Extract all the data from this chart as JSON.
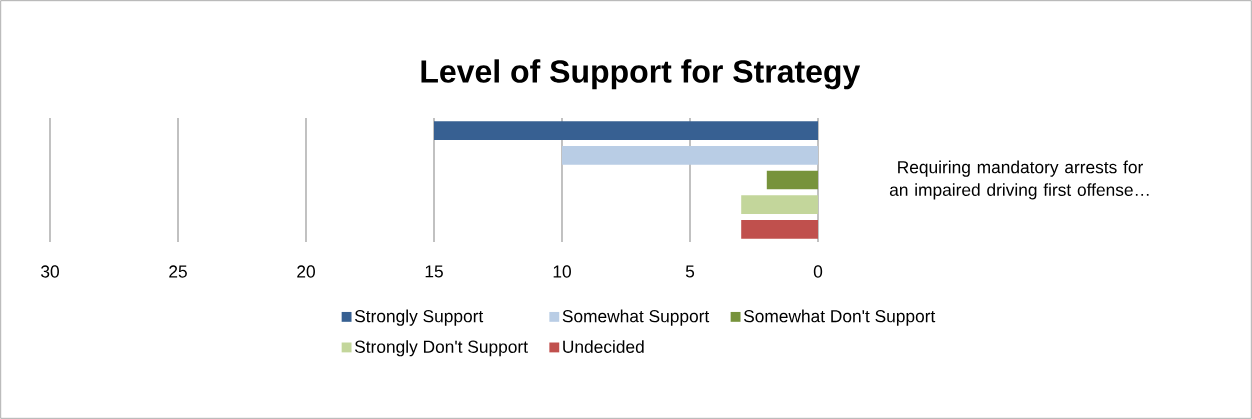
{
  "chart_data": {
    "type": "bar",
    "orientation": "horizontal",
    "title": "Level of Support for Strategy",
    "categories": [
      "Requiring mandatory arrests for an impaired driving first offense…"
    ],
    "series": [
      {
        "name": "Strongly Support",
        "color": "#376092",
        "values": [
          15
        ]
      },
      {
        "name": "Somewhat Support",
        "color": "#b9cde5",
        "values": [
          10
        ]
      },
      {
        "name": "Somewhat Don't Support",
        "color": "#77933c",
        "values": [
          2
        ]
      },
      {
        "name": "Strongly Don't Support",
        "color": "#c3d69b",
        "values": [
          3
        ]
      },
      {
        "name": "Undecided",
        "color": "#c0504d",
        "values": [
          3
        ]
      }
    ],
    "xlim": [
      30,
      0
    ],
    "xticks": [
      30,
      25,
      20,
      15,
      10,
      5,
      0
    ],
    "grid": "x",
    "legend": "bottom"
  }
}
